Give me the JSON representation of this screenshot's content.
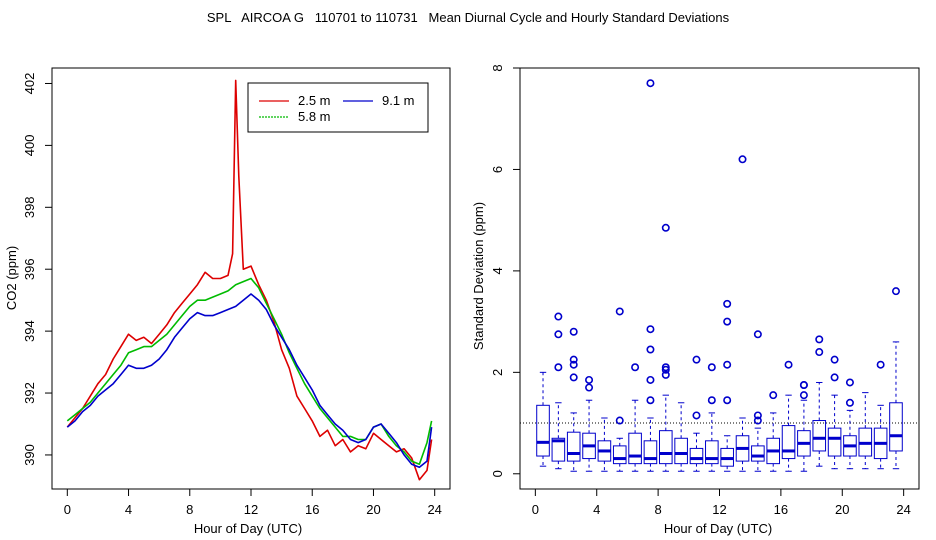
{
  "title": "SPL   AIRCOA G   110701 to 110731   Mean Diurnal Cycle and Hourly Standard Deviations",
  "chart_data": [
    {
      "type": "line",
      "xlabel": "Hour of Day (UTC)",
      "ylabel": "CO2 (ppm)",
      "xlim": [
        -1,
        25
      ],
      "ylim": [
        388.9,
        402.5
      ],
      "xticks": [
        0,
        4,
        8,
        12,
        16,
        20,
        24
      ],
      "yticks": [
        390,
        392,
        394,
        396,
        398,
        400,
        402
      ],
      "legend_position": "top-right",
      "series": [
        {
          "name": "2.5 m",
          "color": "#dd0000",
          "x": [
            0,
            0.5,
            1,
            1.5,
            2,
            2.5,
            3,
            3.5,
            4,
            4.5,
            5,
            5.5,
            6,
            6.5,
            7,
            7.5,
            8,
            8.5,
            9,
            9.5,
            10,
            10.5,
            10.8,
            11,
            11.2,
            11.5,
            12,
            12.5,
            13,
            13.5,
            14,
            14.5,
            15,
            15.5,
            16,
            16.5,
            17,
            17.5,
            18,
            18.5,
            19,
            19.5,
            20,
            20.5,
            21,
            21.5,
            22,
            22.5,
            23,
            23.5,
            23.8
          ],
          "y": [
            390.9,
            391.2,
            391.5,
            391.9,
            392.3,
            392.6,
            393.1,
            393.5,
            393.9,
            393.7,
            393.8,
            393.6,
            393.9,
            394.2,
            394.6,
            394.9,
            395.2,
            395.5,
            395.9,
            395.7,
            395.7,
            395.8,
            396.5,
            402.1,
            399.0,
            396.0,
            396.1,
            395.5,
            395.0,
            394.3,
            393.4,
            392.8,
            391.9,
            391.5,
            391.1,
            390.6,
            390.8,
            390.3,
            390.5,
            390.1,
            390.3,
            390.2,
            390.7,
            390.5,
            390.3,
            390.1,
            390.2,
            389.9,
            389.2,
            389.5,
            390.5
          ]
        },
        {
          "name": "5.8 m",
          "color": "#00bb00",
          "x": [
            0,
            0.5,
            1,
            1.5,
            2,
            2.5,
            3,
            3.5,
            4,
            4.5,
            5,
            5.5,
            6,
            6.5,
            7,
            7.5,
            8,
            8.5,
            9,
            9.5,
            10,
            10.5,
            11,
            11.5,
            12,
            12.5,
            13,
            13.5,
            14,
            14.5,
            15,
            15.5,
            16,
            16.5,
            17,
            17.5,
            18,
            18.5,
            19,
            19.5,
            20,
            20.5,
            21,
            21.5,
            22,
            22.5,
            23,
            23.5,
            23.8
          ],
          "y": [
            391.1,
            391.3,
            391.5,
            391.7,
            392.0,
            392.3,
            392.6,
            392.9,
            393.3,
            393.4,
            393.5,
            393.5,
            393.7,
            393.9,
            394.2,
            394.5,
            394.8,
            395.0,
            395.0,
            395.1,
            395.2,
            395.3,
            395.5,
            395.6,
            395.7,
            395.4,
            394.9,
            394.4,
            393.9,
            393.3,
            392.8,
            392.3,
            391.9,
            391.5,
            391.2,
            390.9,
            390.6,
            390.6,
            390.5,
            390.5,
            390.9,
            391.0,
            390.6,
            390.3,
            390.1,
            389.8,
            389.7,
            390.4,
            391.1
          ]
        },
        {
          "name": "9.1 m",
          "color": "#0000cc",
          "x": [
            0,
            0.5,
            1,
            1.5,
            2,
            2.5,
            3,
            3.5,
            4,
            4.5,
            5,
            5.5,
            6,
            6.5,
            7,
            7.5,
            8,
            8.5,
            9,
            9.5,
            10,
            10.5,
            11,
            11.5,
            12,
            12.5,
            13,
            13.5,
            14,
            14.5,
            15,
            15.5,
            16,
            16.5,
            17,
            17.5,
            18,
            18.5,
            19,
            19.5,
            20,
            20.5,
            21,
            21.5,
            22,
            22.5,
            23,
            23.5,
            23.8
          ],
          "y": [
            390.9,
            391.1,
            391.4,
            391.6,
            391.9,
            392.1,
            392.3,
            392.6,
            392.9,
            392.8,
            392.8,
            392.9,
            393.1,
            393.4,
            393.8,
            394.1,
            394.4,
            394.6,
            394.5,
            394.5,
            394.6,
            394.7,
            394.8,
            395.0,
            395.2,
            395.0,
            394.7,
            394.2,
            393.8,
            393.4,
            392.9,
            392.5,
            392.1,
            391.6,
            391.3,
            391.0,
            390.8,
            390.5,
            390.4,
            390.5,
            390.9,
            391.0,
            390.7,
            390.4,
            390.0,
            389.7,
            389.6,
            389.8,
            390.9
          ]
        }
      ]
    },
    {
      "type": "box",
      "xlabel": "Hour of Day (UTC)",
      "ylabel": "Standard Deviation (ppm)",
      "xlim": [
        -1,
        25
      ],
      "ylim": [
        -0.3,
        8.0
      ],
      "xticks": [
        0,
        4,
        8,
        12,
        16,
        20,
        24
      ],
      "yticks": [
        0,
        2,
        4,
        6,
        8
      ],
      "reference_line": 1.0,
      "color": "#0000cc",
      "boxes": [
        {
          "hour": 0.5,
          "low": 0.15,
          "q1": 0.35,
          "med": 0.62,
          "q3": 1.35,
          "high": 2.0,
          "out": []
        },
        {
          "hour": 1.5,
          "low": 0.1,
          "q1": 0.25,
          "med": 0.65,
          "q3": 0.7,
          "high": 1.4,
          "out": [
            2.1,
            2.75,
            3.1
          ]
        },
        {
          "hour": 2.5,
          "low": 0.05,
          "q1": 0.25,
          "med": 0.4,
          "q3": 0.82,
          "high": 1.2,
          "out": [
            1.9,
            2.15,
            2.25,
            2.8
          ]
        },
        {
          "hour": 3.5,
          "low": 0.05,
          "q1": 0.3,
          "med": 0.55,
          "q3": 0.8,
          "high": 1.45,
          "out": [
            1.7,
            1.85
          ]
        },
        {
          "hour": 4.5,
          "low": 0.05,
          "q1": 0.25,
          "med": 0.45,
          "q3": 0.65,
          "high": 1.1,
          "out": []
        },
        {
          "hour": 5.5,
          "low": 0.05,
          "q1": 0.2,
          "med": 0.3,
          "q3": 0.55,
          "high": 0.7,
          "out": [
            1.05,
            3.2
          ]
        },
        {
          "hour": 6.5,
          "low": 0.05,
          "q1": 0.2,
          "med": 0.35,
          "q3": 0.8,
          "high": 1.45,
          "out": [
            2.1
          ]
        },
        {
          "hour": 7.5,
          "low": 0.05,
          "q1": 0.2,
          "med": 0.3,
          "q3": 0.65,
          "high": 1.1,
          "out": [
            1.45,
            1.85,
            2.45,
            2.85,
            7.7
          ]
        },
        {
          "hour": 8.5,
          "low": 0.05,
          "q1": 0.2,
          "med": 0.4,
          "q3": 0.85,
          "high": 1.55,
          "out": [
            1.95,
            2.05,
            2.1,
            4.85
          ]
        },
        {
          "hour": 9.5,
          "low": 0.05,
          "q1": 0.2,
          "med": 0.4,
          "q3": 0.7,
          "high": 1.4,
          "out": []
        },
        {
          "hour": 10.5,
          "low": 0.05,
          "q1": 0.2,
          "med": 0.3,
          "q3": 0.5,
          "high": 0.8,
          "out": [
            1.15,
            2.25
          ]
        },
        {
          "hour": 11.5,
          "low": 0.05,
          "q1": 0.2,
          "med": 0.3,
          "q3": 0.65,
          "high": 1.2,
          "out": [
            1.45,
            2.1
          ]
        },
        {
          "hour": 12.5,
          "low": 0.05,
          "q1": 0.15,
          "med": 0.3,
          "q3": 0.5,
          "high": 0.75,
          "out": [
            1.45,
            2.15,
            3.0,
            3.35
          ]
        },
        {
          "hour": 13.5,
          "low": 0.05,
          "q1": 0.25,
          "med": 0.5,
          "q3": 0.75,
          "high": 1.1,
          "out": [
            6.2
          ]
        },
        {
          "hour": 14.5,
          "low": 0.05,
          "q1": 0.25,
          "med": 0.35,
          "q3": 0.55,
          "high": 0.9,
          "out": [
            1.05,
            1.15,
            2.75
          ]
        },
        {
          "hour": 15.5,
          "low": 0.05,
          "q1": 0.2,
          "med": 0.45,
          "q3": 0.7,
          "high": 1.2,
          "out": [
            1.55
          ]
        },
        {
          "hour": 16.5,
          "low": 0.05,
          "q1": 0.3,
          "med": 0.45,
          "q3": 0.95,
          "high": 1.55,
          "out": [
            2.15
          ]
        },
        {
          "hour": 17.5,
          "low": 0.05,
          "q1": 0.35,
          "med": 0.6,
          "q3": 0.85,
          "high": 1.45,
          "out": [
            1.55,
            1.75,
            1.75
          ]
        },
        {
          "hour": 18.5,
          "low": 0.15,
          "q1": 0.45,
          "med": 0.7,
          "q3": 1.05,
          "high": 1.8,
          "out": [
            2.4,
            2.65
          ]
        },
        {
          "hour": 19.5,
          "low": 0.1,
          "q1": 0.35,
          "med": 0.7,
          "q3": 0.9,
          "high": 1.55,
          "out": [
            1.9,
            2.25
          ]
        },
        {
          "hour": 20.5,
          "low": 0.1,
          "q1": 0.35,
          "med": 0.55,
          "q3": 0.75,
          "high": 1.25,
          "out": [
            1.4,
            1.8
          ]
        },
        {
          "hour": 21.5,
          "low": 0.1,
          "q1": 0.35,
          "med": 0.6,
          "q3": 0.9,
          "high": 1.6,
          "out": []
        },
        {
          "hour": 22.5,
          "low": 0.1,
          "q1": 0.3,
          "med": 0.6,
          "q3": 0.9,
          "high": 1.35,
          "out": [
            2.15
          ]
        },
        {
          "hour": 23.5,
          "low": 0.1,
          "q1": 0.45,
          "med": 0.75,
          "q3": 1.4,
          "high": 2.6,
          "out": [
            3.6
          ]
        }
      ]
    }
  ]
}
